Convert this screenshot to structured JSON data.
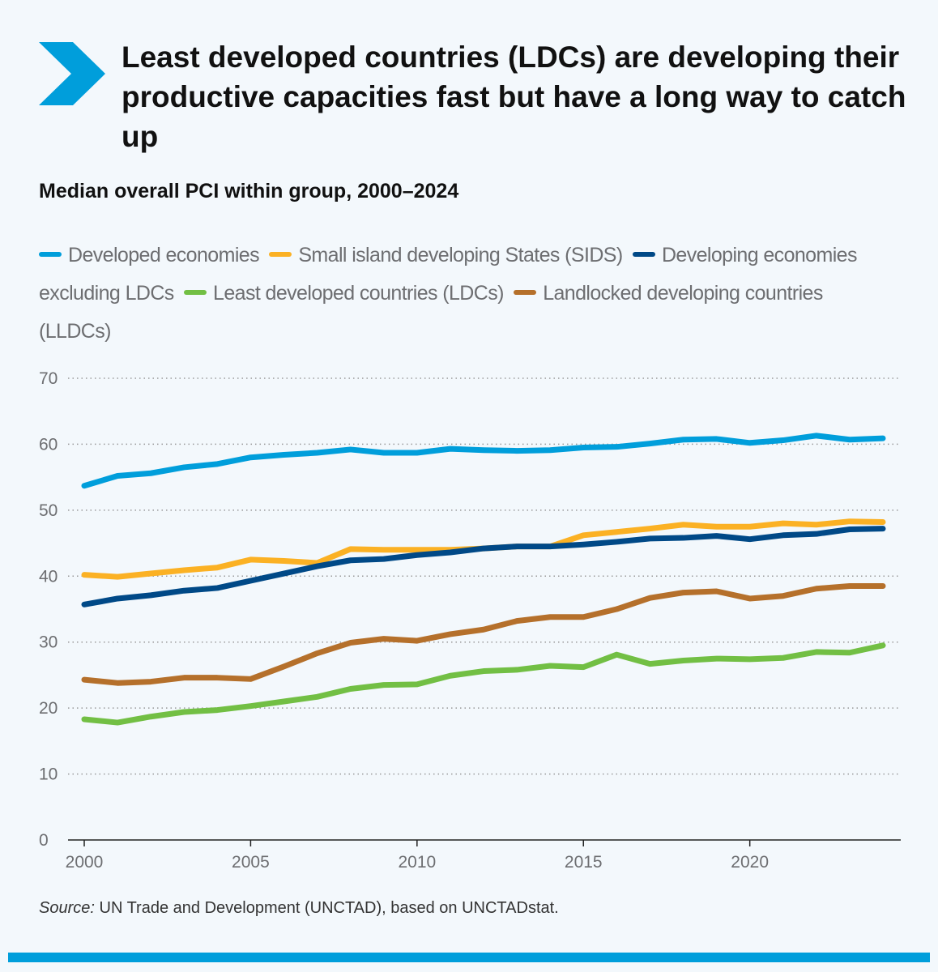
{
  "title": "Least developed countries (LDCs) are developing their productive capacities fast but have a long way to catch up",
  "subtitle": "Median overall PCI within group, 2000–2024",
  "source_label": "Source:",
  "source_text": " UN Trade and Development (UNCTAD), based on UNCTADstat.",
  "colors": {
    "accent": "#009edb",
    "background": "#f3f8fc"
  },
  "chart_data": {
    "type": "line",
    "title": "Median overall PCI within group, 2000–2024",
    "xlabel": "",
    "ylabel": "",
    "xlim": [
      2000,
      2024
    ],
    "ylim": [
      0,
      70
    ],
    "yticks": [
      "0",
      "10",
      "20",
      "30",
      "40",
      "50",
      "60",
      "70"
    ],
    "xticks": [
      "2000",
      "2005",
      "2010",
      "2015",
      "2020"
    ],
    "grid": "horizontal dotted",
    "legend": "top",
    "x": [
      2000,
      2001,
      2002,
      2003,
      2004,
      2005,
      2006,
      2007,
      2008,
      2009,
      2010,
      2011,
      2012,
      2013,
      2014,
      2015,
      2016,
      2017,
      2018,
      2019,
      2020,
      2021,
      2022,
      2023,
      2024
    ],
    "series": [
      {
        "name": "Developed economies",
        "color": "#009edb",
        "values": [
          53.7,
          55.2,
          55.6,
          56.5,
          57.0,
          58.0,
          58.4,
          58.7,
          59.2,
          58.7,
          58.7,
          59.3,
          59.1,
          59.0,
          59.1,
          59.5,
          59.6,
          60.1,
          60.7,
          60.8,
          60.2,
          60.6,
          61.3,
          60.7,
          60.9
        ]
      },
      {
        "name": "Small island developing States (SIDS)",
        "color": "#fbb124",
        "values": [
          40.2,
          39.9,
          40.4,
          40.9,
          41.3,
          42.5,
          42.3,
          42.0,
          44.1,
          44.0,
          44.0,
          44.0,
          44.2,
          44.5,
          44.5,
          46.2,
          46.7,
          47.2,
          47.8,
          47.5,
          47.5,
          48.0,
          47.8,
          48.3,
          48.2
        ]
      },
      {
        "name": "Developing economies excluding LDCs",
        "color": "#004987",
        "values": [
          35.7,
          36.6,
          37.1,
          37.8,
          38.2,
          39.3,
          40.4,
          41.5,
          42.4,
          42.6,
          43.2,
          43.6,
          44.2,
          44.5,
          44.5,
          44.8,
          45.2,
          45.7,
          45.8,
          46.1,
          45.6,
          46.2,
          46.4,
          47.1,
          47.2
        ]
      },
      {
        "name": "Least developed countries (LDCs)",
        "color": "#72bf44",
        "values": [
          18.3,
          17.8,
          18.7,
          19.4,
          19.7,
          20.3,
          21.0,
          21.7,
          22.9,
          23.5,
          23.6,
          24.9,
          25.6,
          25.8,
          26.4,
          26.2,
          28.1,
          26.7,
          27.2,
          27.5,
          27.4,
          27.6,
          28.5,
          28.4,
          29.5
        ]
      },
      {
        "name": "Landlocked developing countries (LLDCs)",
        "color": "#b5702b",
        "values": [
          24.3,
          23.8,
          24.0,
          24.6,
          24.6,
          24.4,
          26.3,
          28.3,
          29.9,
          30.5,
          30.2,
          31.2,
          31.9,
          33.2,
          33.8,
          33.8,
          35.0,
          36.7,
          37.5,
          37.7,
          36.6,
          37.0,
          38.1,
          38.5,
          38.5
        ]
      }
    ]
  }
}
